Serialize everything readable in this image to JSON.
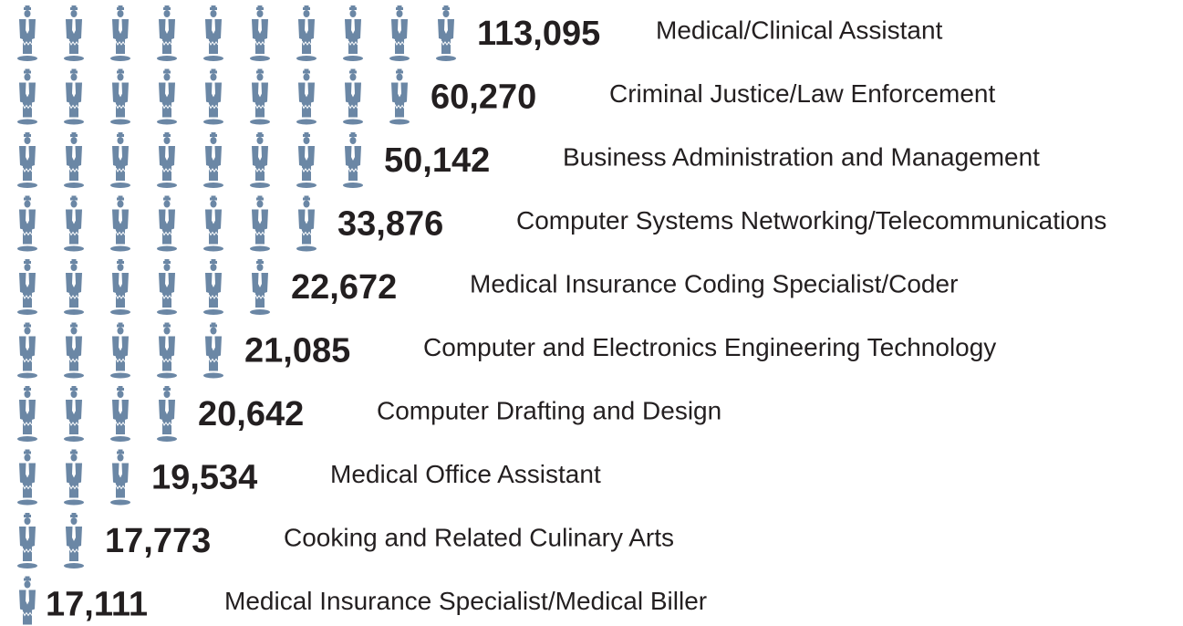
{
  "chart_data": {
    "type": "pictograph",
    "categories": [
      "Medical/Clinical Assistant",
      "Criminal Justice/Law Enforcement",
      "Business Administration and Management",
      "Computer Systems Networking/Telecommunications",
      "Medical Insurance Coding Specialist/Coder",
      "Computer and Electronics Engineering Technology",
      "Computer Drafting and Design",
      "Medical Office Assistant",
      "Cooking and Related Culinary Arts",
      "Medical Insurance Specialist/Medical Biller"
    ],
    "values": [
      113095,
      60270,
      50142,
      33876,
      22672,
      21085,
      20642,
      19534,
      17773,
      17111
    ],
    "value_labels": [
      "113,095",
      "60,270",
      "50,142",
      "33,876",
      "22,672",
      "21,085",
      "20,642",
      "19,534",
      "17,773",
      "17,111"
    ],
    "color": "#6b87a5"
  }
}
